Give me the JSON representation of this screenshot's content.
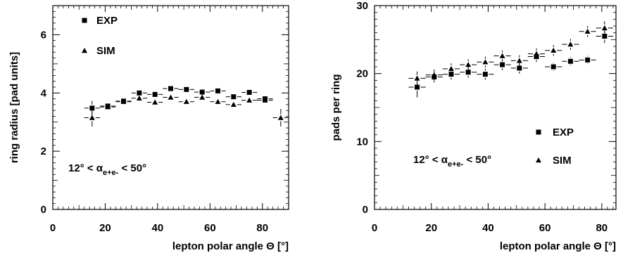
{
  "chart_data": [
    {
      "type": "scatter",
      "xlabel": "lepton polar angle Θ [°]",
      "ylabel": "ring radius [pad units]",
      "xlim": [
        0,
        90
      ],
      "ylim": [
        0,
        7
      ],
      "x_ticks": [
        "0",
        "20",
        "40",
        "60",
        "80"
      ],
      "y_ticks": [
        "0",
        "2",
        "4",
        "6"
      ],
      "legend": {
        "placement": "top-left",
        "entries": [
          "EXP",
          "SIM"
        ]
      },
      "annotation": {
        "prefix": "12° < α",
        "subscript": "e+e-",
        "suffix": " < 50°"
      },
      "series": [
        {
          "name": "EXP",
          "marker": "square",
          "x": [
            15,
            21,
            27,
            33,
            39,
            45,
            51,
            57,
            63,
            69,
            75,
            81
          ],
          "y": [
            3.48,
            3.55,
            3.72,
            4.0,
            3.95,
            4.15,
            4.12,
            4.03,
            4.07,
            3.87,
            4.02,
            3.8
          ],
          "yerr": [
            0.25,
            0.12,
            0.1,
            0.08,
            0.08,
            0.08,
            0.08,
            0.08,
            0.08,
            0.08,
            0.08,
            0.1
          ]
        },
        {
          "name": "SIM",
          "marker": "triangle",
          "x": [
            15,
            21,
            27,
            33,
            39,
            45,
            51,
            57,
            63,
            69,
            75,
            81,
            87
          ],
          "y": [
            3.15,
            3.52,
            3.7,
            3.82,
            3.68,
            3.85,
            3.7,
            3.85,
            3.7,
            3.6,
            3.75,
            3.75,
            3.15
          ],
          "yerr": [
            0.3,
            0.12,
            0.1,
            0.08,
            0.1,
            0.08,
            0.08,
            0.08,
            0.08,
            0.08,
            0.08,
            0.1,
            0.3
          ]
        }
      ]
    },
    {
      "type": "scatter",
      "xlabel": "lepton polar angle Θ [°]",
      "ylabel": "pads per ring",
      "xlim": [
        0,
        85
      ],
      "ylim": [
        0,
        30
      ],
      "x_ticks": [
        "0",
        "20",
        "40",
        "60",
        "80"
      ],
      "y_ticks": [
        "0",
        "10",
        "20",
        "30"
      ],
      "legend": {
        "placement": "center-right",
        "entries": [
          "EXP",
          "SIM"
        ]
      },
      "annotation": {
        "prefix": "12° < α",
        "subscript": "e+e-",
        "suffix": " < 50°"
      },
      "series": [
        {
          "name": "EXP",
          "marker": "square",
          "x": [
            15,
            21,
            27,
            33,
            39,
            45,
            51,
            57,
            63,
            69,
            75,
            81
          ],
          "y": [
            18.0,
            19.5,
            19.9,
            20.2,
            19.9,
            21.3,
            20.8,
            22.5,
            21.0,
            21.8,
            22.0,
            25.5
          ],
          "yerr": [
            1.5,
            0.8,
            0.8,
            0.8,
            0.8,
            0.8,
            0.8,
            0.8,
            0.6,
            0.6,
            0.6,
            1.0
          ]
        },
        {
          "name": "SIM",
          "marker": "triangle",
          "x": [
            15,
            21,
            27,
            33,
            39,
            45,
            51,
            57,
            63,
            69,
            75,
            81
          ],
          "y": [
            19.3,
            19.8,
            20.7,
            21.3,
            21.7,
            22.6,
            21.9,
            22.9,
            23.4,
            24.3,
            26.2,
            26.7
          ],
          "yerr": [
            1.0,
            0.8,
            0.8,
            0.8,
            0.8,
            0.8,
            0.8,
            0.8,
            0.8,
            0.8,
            0.8,
            1.0
          ]
        }
      ]
    }
  ]
}
